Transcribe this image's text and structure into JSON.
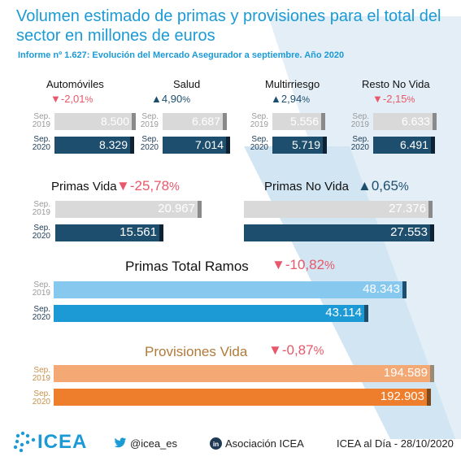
{
  "title": "Volumen estimado de primas y provisiones para el total del sector en millones de euros",
  "subtitle": "Informe nº 1.627: Evolución del Mercado Asegurador a septiembre. Año 2020",
  "sep_labels": {
    "prev": [
      "Sep.",
      "2019"
    ],
    "curr": [
      "Sep.",
      "2020"
    ]
  },
  "colors": {
    "light_grey": "#d9d9d9",
    "dark_blue": "#1e4e6e",
    "light_blue": "#86c8ee",
    "mid_blue": "#1b9ad6",
    "light_orange": "#f4a874",
    "orange": "#ee7d2c",
    "down_red": "#e8586a",
    "up_navy": "#1e4e6e",
    "title_blue": "#1b9ad6"
  },
  "chart_data": [
    {
      "type": "bar",
      "title": "Automóviles",
      "change": {
        "direction": "down",
        "text": "-2,01",
        "unit": "%"
      },
      "categories": [
        "Sep. 2019",
        "Sep. 2020"
      ],
      "values": [
        8500,
        8329
      ],
      "labels": [
        "8.500",
        "8.329"
      ]
    },
    {
      "type": "bar",
      "title": "Salud",
      "change": {
        "direction": "up",
        "text": "4,90",
        "unit": "%"
      },
      "categories": [
        "Sep. 2019",
        "Sep. 2020"
      ],
      "values": [
        6687,
        7014
      ],
      "labels": [
        "6.687",
        "7.014"
      ]
    },
    {
      "type": "bar",
      "title": "Multirriesgo",
      "change": {
        "direction": "up",
        "text": "2,94",
        "unit": "%"
      },
      "categories": [
        "Sep. 2019",
        "Sep. 2020"
      ],
      "values": [
        5556,
        5719
      ],
      "labels": [
        "5.556",
        "5.719"
      ]
    },
    {
      "type": "bar",
      "title": "Resto No Vida",
      "change": {
        "direction": "down",
        "text": "-2,15",
        "unit": "%"
      },
      "categories": [
        "Sep. 2019",
        "Sep. 2020"
      ],
      "values": [
        6633,
        6491
      ],
      "labels": [
        "6.633",
        "6.491"
      ]
    },
    {
      "type": "bar",
      "title": "Primas Vida",
      "change": {
        "direction": "down",
        "text": "-25,78",
        "unit": "%"
      },
      "categories": [
        "Sep. 2019",
        "Sep. 2020"
      ],
      "values": [
        20967,
        15561
      ],
      "labels": [
        "20.967",
        "15.561"
      ]
    },
    {
      "type": "bar",
      "title": "Primas No Vida",
      "change": {
        "direction": "up",
        "text": "0,65",
        "unit": "%"
      },
      "categories": [
        "Sep. 2019",
        "Sep. 2020"
      ],
      "values": [
        27376,
        27553
      ],
      "labels": [
        "27.376",
        "27.553"
      ]
    },
    {
      "type": "bar",
      "title": "Primas Total Ramos",
      "change": {
        "direction": "down",
        "text": "-10,82",
        "unit": "%"
      },
      "categories": [
        "Sep. 2019",
        "Sep. 2020"
      ],
      "values": [
        48343,
        43114
      ],
      "labels": [
        "48.343",
        "43.114"
      ]
    },
    {
      "type": "bar",
      "title": "Provisiones Vida",
      "change": {
        "direction": "down",
        "text": "-0,87",
        "unit": "%"
      },
      "categories": [
        "Sep. 2019",
        "Sep. 2020"
      ],
      "values": [
        194589,
        192903
      ],
      "labels": [
        "194.589",
        "192.903"
      ]
    }
  ],
  "footer": {
    "logo_text": "icea",
    "twitter_icon": "twitter-bird-icon",
    "twitter": "@icea_es",
    "linkedin_icon": "linkedin-icon",
    "linkedin": "Asociación ICEA",
    "source": "ICEA al Día - 28/10/2020"
  }
}
